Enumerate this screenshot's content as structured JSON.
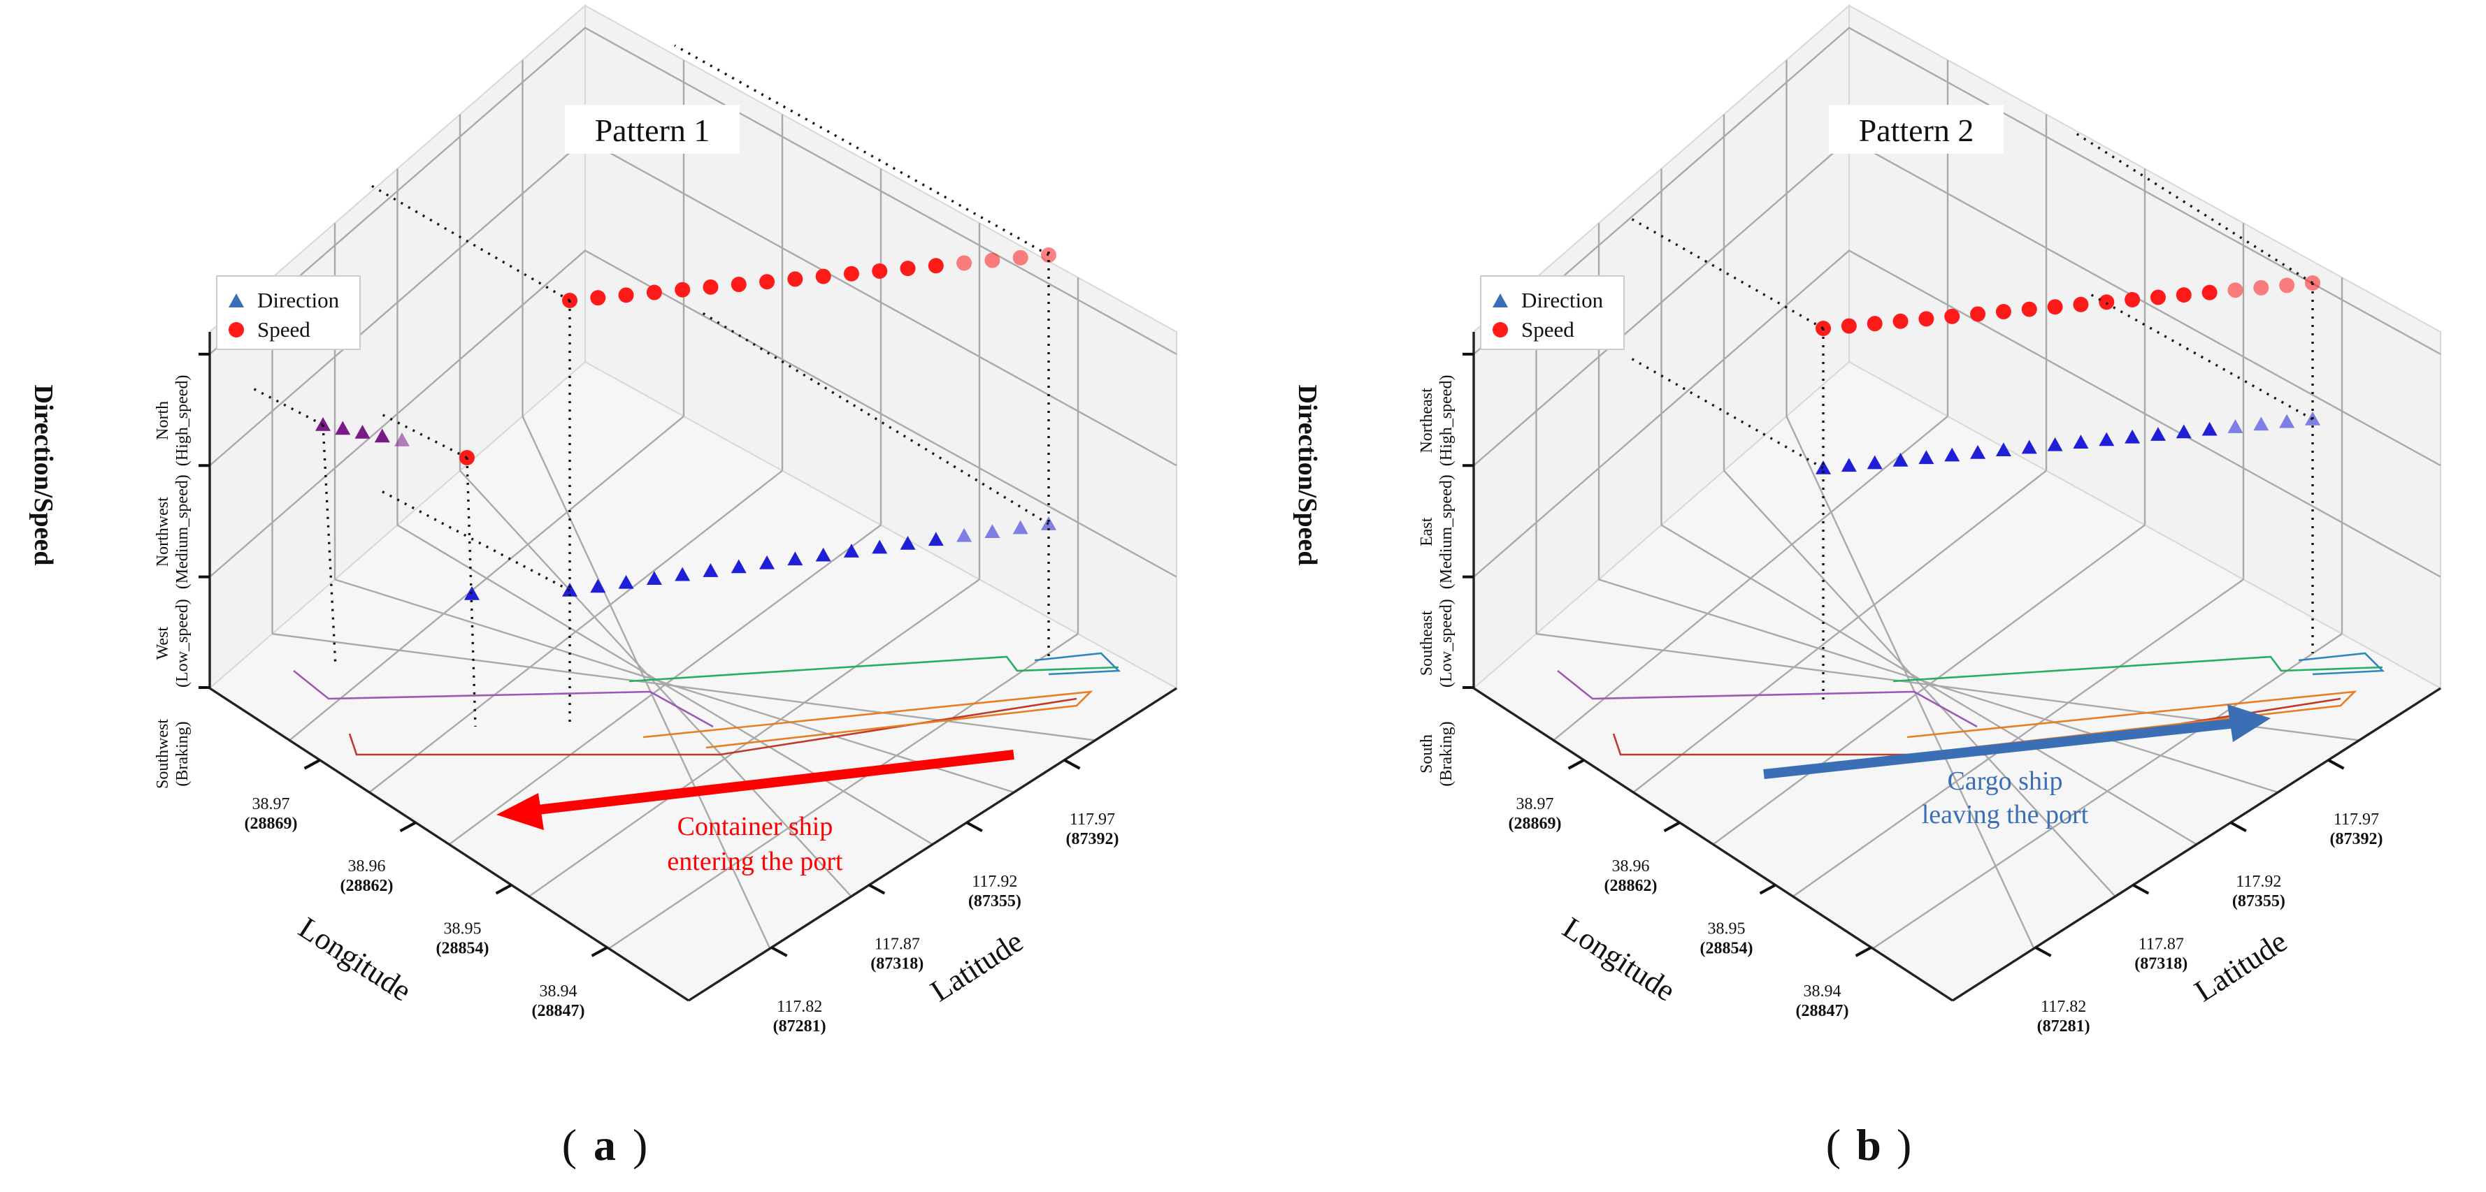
{
  "chart_data": [
    {
      "type": "scatter",
      "panel": "a",
      "title": "Pattern 1",
      "caption": "a",
      "xlabel": "Longitude",
      "ylabel": "Latitude",
      "zlabel": "Direction/Speed",
      "longitude_ticks": [
        {
          "value": "38.97",
          "code": "(28869)"
        },
        {
          "value": "38.96",
          "code": "(28862)"
        },
        {
          "value": "38.95",
          "code": "(28854)"
        },
        {
          "value": "38.94",
          "code": "(28847)"
        }
      ],
      "latitude_ticks": [
        {
          "value": "117.97",
          "code": "(87392)"
        },
        {
          "value": "117.92",
          "code": "(87355)"
        },
        {
          "value": "117.87",
          "code": "(87318)"
        },
        {
          "value": "117.82",
          "code": "(87281)"
        }
      ],
      "z_ticks": [
        {
          "line1": "Southwest",
          "line2": "(Braking)"
        },
        {
          "line1": "West",
          "line2": "(Low_speed)"
        },
        {
          "line1": "Northwest",
          "line2": "(Medium_speed)"
        },
        {
          "line1": "North",
          "line2": "(High_speed)"
        }
      ],
      "legend": [
        "Direction",
        "Speed"
      ],
      "annotation": [
        "Container ship",
        "entering the port"
      ],
      "annotation_color": "#ff0000",
      "arrow_direction": "entering",
      "series": [
        {
          "name": "Speed",
          "color": "#ff1a1a",
          "level": "High_speed",
          "count": 18,
          "start": 0.48,
          "end": 0.98
        },
        {
          "name": "Direction",
          "color": "#1f1fd8",
          "level": "West",
          "count": 18,
          "start": 0.48,
          "end": 0.98
        },
        {
          "name": "Direction",
          "color": "#7a1a88",
          "level": "Northwest",
          "count": 5,
          "start": 0.12,
          "end": 0.21
        },
        {
          "name": "Speed",
          "color": "#ff1a1a",
          "level": "Northwest",
          "count": 1,
          "start": 0.25,
          "end": 0.25
        },
        {
          "name": "Direction",
          "color": "#1f1fd8",
          "level": "West",
          "count": 1,
          "start": 0.25,
          "end": 0.25
        }
      ]
    },
    {
      "type": "scatter",
      "panel": "b",
      "title": "Pattern 2",
      "caption": "b",
      "xlabel": "Longitude",
      "ylabel": "Latitude",
      "zlabel": "Direction/Speed",
      "longitude_ticks": [
        {
          "value": "38.97",
          "code": "(28869)"
        },
        {
          "value": "38.96",
          "code": "(28862)"
        },
        {
          "value": "38.95",
          "code": "(28854)"
        },
        {
          "value": "38.94",
          "code": "(28847)"
        }
      ],
      "latitude_ticks": [
        {
          "value": "117.97",
          "code": "(87392)"
        },
        {
          "value": "117.92",
          "code": "(87355)"
        },
        {
          "value": "117.87",
          "code": "(87318)"
        },
        {
          "value": "117.82",
          "code": "(87281)"
        }
      ],
      "z_ticks": [
        {
          "line1": "South",
          "line2": "(Braking)"
        },
        {
          "line1": "Southeast",
          "line2": "(Low_speed)"
        },
        {
          "line1": "East",
          "line2": "(Medium_speed)"
        },
        {
          "line1": "Northeast",
          "line2": "(High_speed)"
        }
      ],
      "legend": [
        "Direction",
        "Speed"
      ],
      "annotation": [
        "Cargo ship",
        "leaving the port"
      ],
      "annotation_color": "#3a6fb5",
      "arrow_direction": "leaving",
      "series": [
        {
          "name": "Speed",
          "color": "#ff1a1a",
          "level": "High_speed",
          "count": 20,
          "start": 0.48,
          "end": 0.98
        },
        {
          "name": "Direction",
          "color": "#1f1fd8",
          "level": "Medium_speed",
          "count": 20,
          "start": 0.48,
          "end": 0.98
        }
      ]
    }
  ]
}
